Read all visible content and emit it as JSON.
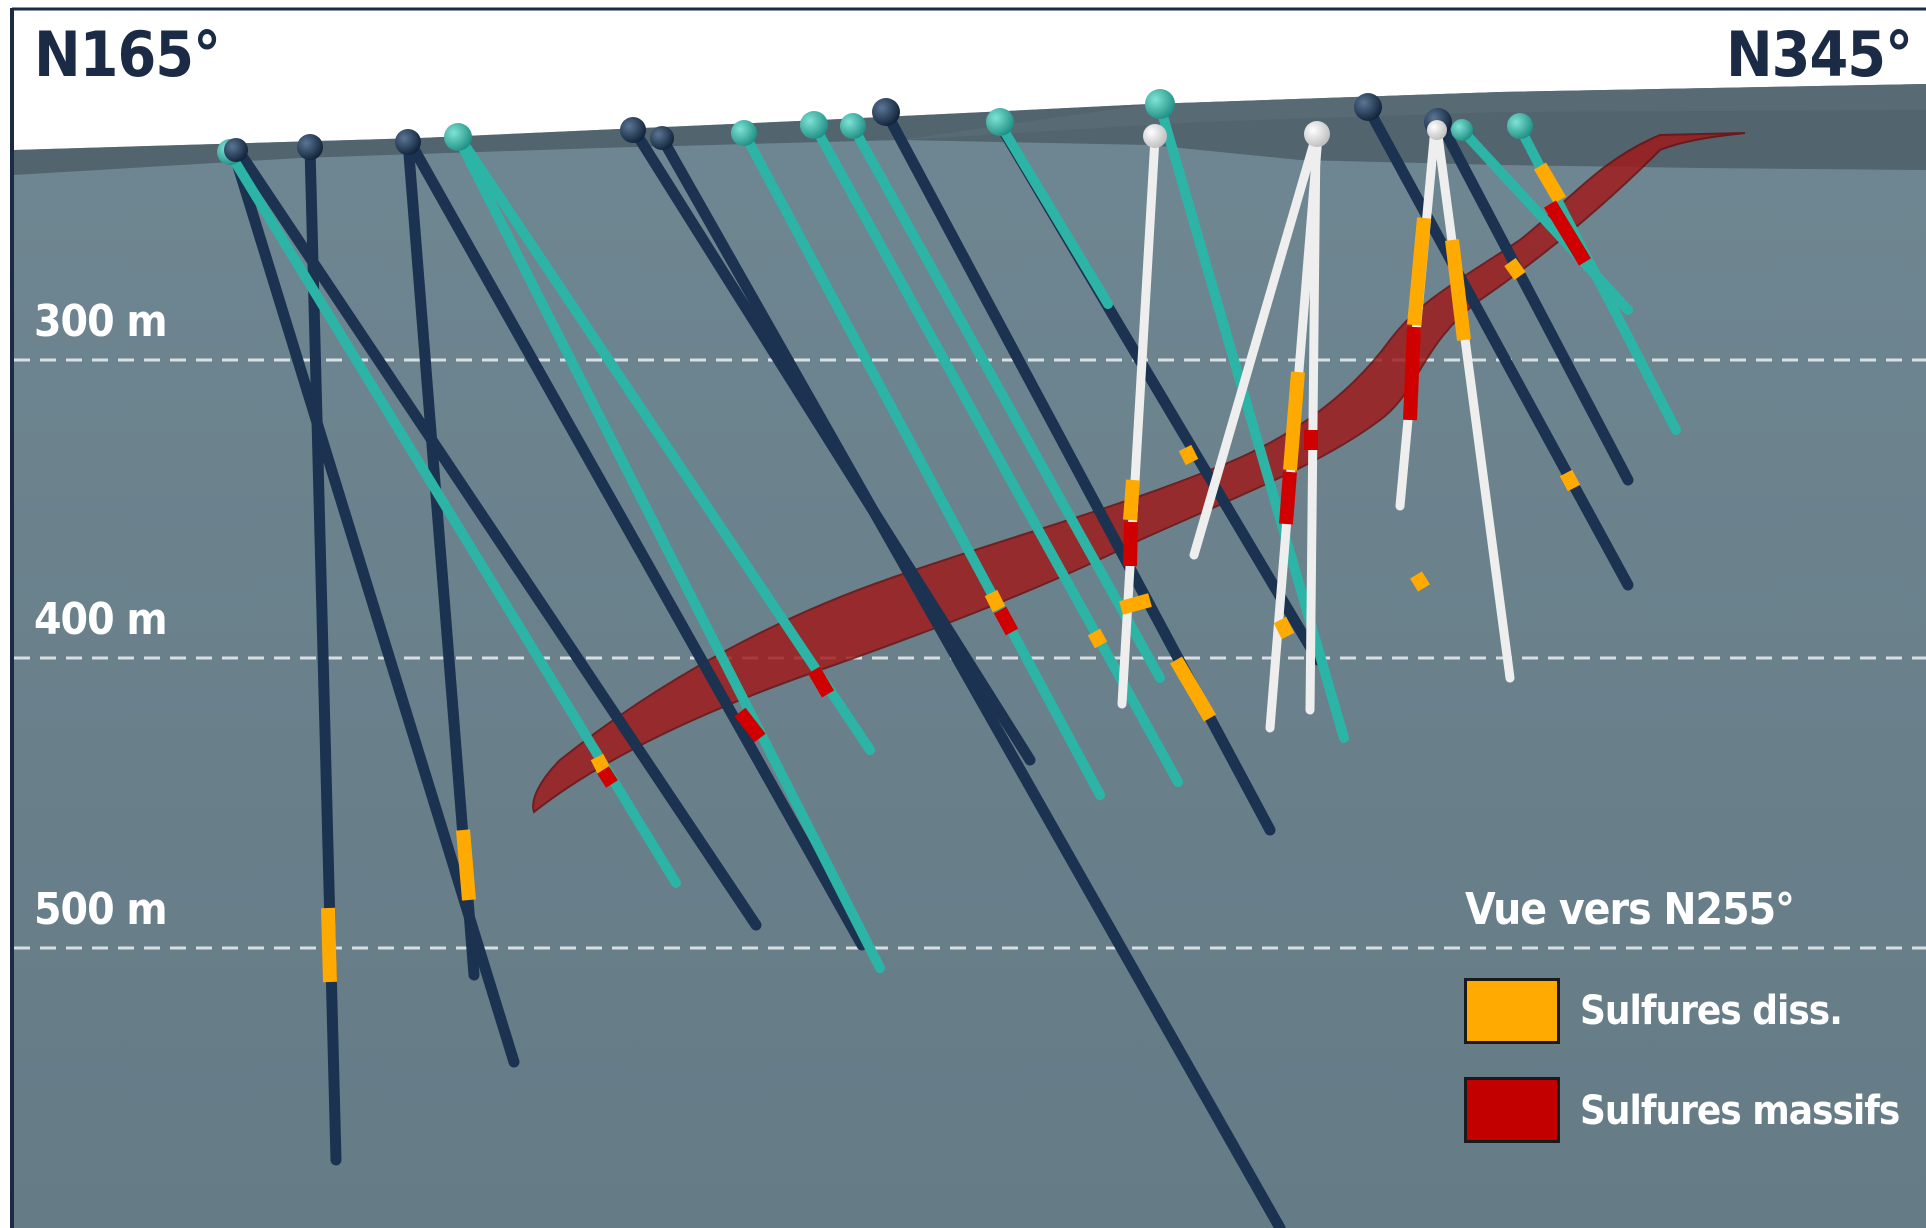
{
  "orientation": {
    "left": "N165°",
    "right": "N345°"
  },
  "depth_labels": [
    "300 m",
    "400 m",
    "500 m"
  ],
  "view": {
    "title": "Vue vers N255°"
  },
  "legend": [
    {
      "label": "Sulfures diss.",
      "color": "#ffaa00"
    },
    {
      "label": "Sulfures massifs",
      "color": "#c30000"
    }
  ],
  "colors": {
    "sky": "#ffffff",
    "ground": "#6b828d",
    "surface_band": "#4e5f69",
    "hole_dark": "#1b3350",
    "hole_teal": "#2cb5a6",
    "hole_white": "#eeeeee",
    "ore_zone": "#9e1c1c",
    "frame": "#1b2a45"
  }
}
